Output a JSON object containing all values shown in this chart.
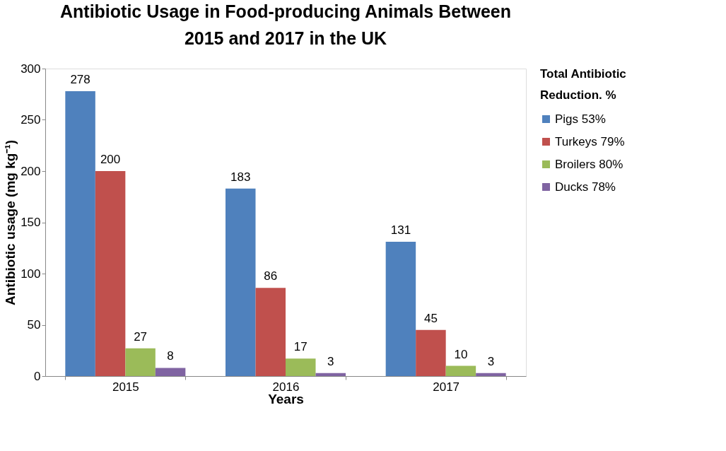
{
  "chart_data": {
    "type": "bar",
    "title": "Antibiotic Usage in Food-producing Animals Between 2015 and 2017 in the UK",
    "xlabel": "Years",
    "ylabel": "Antibiotic usage (mg kg⁻¹)",
    "legend_title": "Total Antibiotic Reduction. %",
    "categories": [
      "2015",
      "2016",
      "2017"
    ],
    "series": [
      {
        "name": "Pigs 53%",
        "color": "#4f81bd",
        "values": [
          278,
          183,
          131
        ]
      },
      {
        "name": "Turkeys 79%",
        "color": "#c0504d",
        "values": [
          200,
          86,
          45
        ]
      },
      {
        "name": "Broilers 80%",
        "color": "#9bbb59",
        "values": [
          27,
          17,
          10
        ]
      },
      {
        "name": "Ducks 78%",
        "color": "#8064a2",
        "values": [
          8,
          3,
          3
        ]
      }
    ],
    "ylim": [
      0,
      300
    ],
    "yticks": [
      0,
      50,
      100,
      150,
      200,
      250,
      300
    ],
    "grid": false,
    "legend": "right",
    "data_labels": true
  }
}
